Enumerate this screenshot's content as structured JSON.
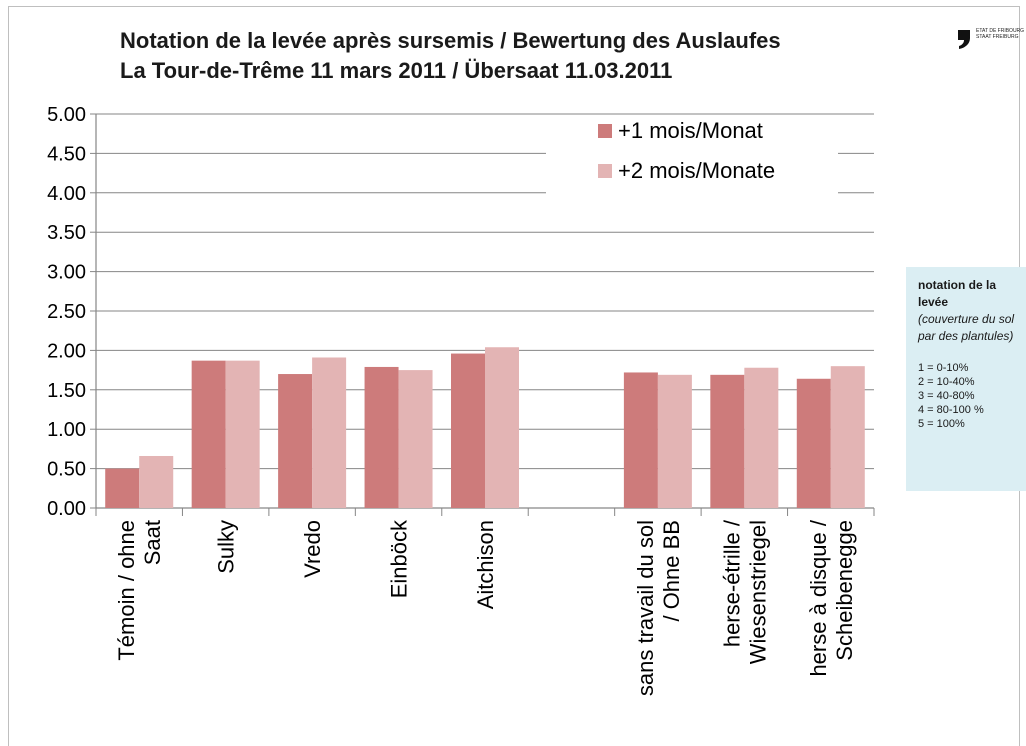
{
  "header": {
    "title": "Notation de la levée après sursemis / Bewertung des Auslaufes",
    "subtitle": "La Tour-de-Trême 11 mars 2011 / Übersaat 11.03.2011"
  },
  "logo": {
    "line1": "ETAT DE FRIBOURG",
    "line2": "STAAT FREIBURG"
  },
  "info_box": {
    "title": "notation de la levée",
    "description": "(couverture du sol par des plantules)",
    "scale": [
      "1 = 0-10%",
      "2 = 10-40%",
      "3 = 40-80%",
      "4 = 80-100 %",
      "5 = 100%"
    ]
  },
  "colors": {
    "series1": "#cd7b7b",
    "series2": "#e3b4b4",
    "grid": "#868686",
    "info_bg": "#dbeef3"
  },
  "chart_data": {
    "type": "bar",
    "title": "Notation de la levée après sursemis / Bewertung des Auslaufes",
    "subtitle": "La Tour-de-Trême 11 mars 2011 / Übersaat 11.03.2011",
    "categories": [
      [
        "Témoin / ohne",
        "Saat"
      ],
      [
        "Sulky"
      ],
      [
        "Vredo"
      ],
      [
        "Einböck"
      ],
      [
        "Aitchison"
      ],
      [],
      [
        "sans travail du sol",
        "/ Ohne BB"
      ],
      [
        "herse-étrille /",
        "Wiesenstriegel"
      ],
      [
        "herse à disque /",
        "Scheibenegge"
      ]
    ],
    "series": [
      {
        "name": "+1 mois/Monat",
        "values": [
          0.5,
          1.87,
          1.7,
          1.79,
          1.96,
          null,
          1.72,
          1.69,
          1.64
        ]
      },
      {
        "name": "+2 mois/Monate",
        "values": [
          0.66,
          1.87,
          1.91,
          1.75,
          2.04,
          null,
          1.69,
          1.78,
          1.8
        ]
      }
    ],
    "ylim": [
      0,
      5
    ],
    "yticks": [
      "0.00",
      "0.50",
      "1.00",
      "1.50",
      "2.00",
      "2.50",
      "3.00",
      "3.50",
      "4.00",
      "4.50",
      "5.00"
    ],
    "grid": true,
    "legend": "top-right"
  }
}
